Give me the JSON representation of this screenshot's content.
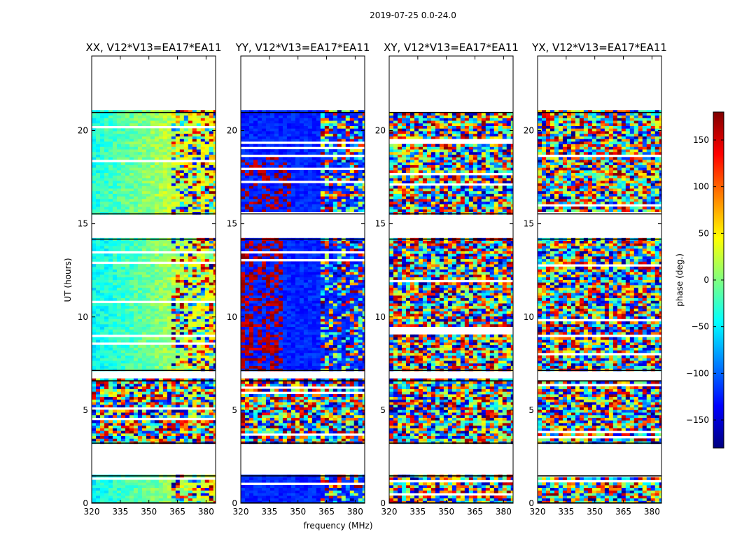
{
  "figure": {
    "suptitle": "2019-07-25 0.0-24.0"
  },
  "chart_data": {
    "type": "heatmap",
    "xlabel": "frequency (MHz)",
    "ylabel": "UT (hours)",
    "xlim": [
      320,
      385
    ],
    "ylim": [
      0,
      24
    ],
    "xticks": [
      320,
      335,
      350,
      365,
      380
    ],
    "yticks": [
      0,
      5,
      10,
      15,
      20
    ],
    "colorbar": {
      "label": "phase (deg.)",
      "vmin": -180,
      "vmax": 180,
      "ticks": [
        -150,
        -100,
        -50,
        0,
        50,
        100,
        150
      ],
      "tick_labels": [
        "−150",
        "−100",
        "−50",
        "0",
        "50",
        "100",
        "150"
      ],
      "colormap": "jet",
      "colors": [
        "#00007f",
        "#0000ff",
        "#007fff",
        "#00ffff",
        "#7fff7f",
        "#ffff00",
        "#ff7f00",
        "#ff0000",
        "#7f0000"
      ]
    },
    "observed_time_ranges_hours": [
      [
        0.0,
        1.5
      ],
      [
        3.2,
        6.6
      ],
      [
        7.1,
        14.2
      ],
      [
        15.5,
        21.0
      ]
    ],
    "panels": [
      {
        "title": "XX, V12*V13=EA17*EA11",
        "phase_description": "mostly -30 to +60 deg, rising with frequency; noisy 3.2-6.6 h"
      },
      {
        "title": "YY, V12*V13=EA17*EA11",
        "phase_description": "mostly -180/+180 wrapped, blue/red; noisy 3.2-6.6 h"
      },
      {
        "title": "XY, V12*V13=EA17*EA11",
        "phase_description": "random phase noise"
      },
      {
        "title": "YX, V12*V13=EA17*EA11",
        "phase_description": "random phase noise"
      }
    ]
  }
}
